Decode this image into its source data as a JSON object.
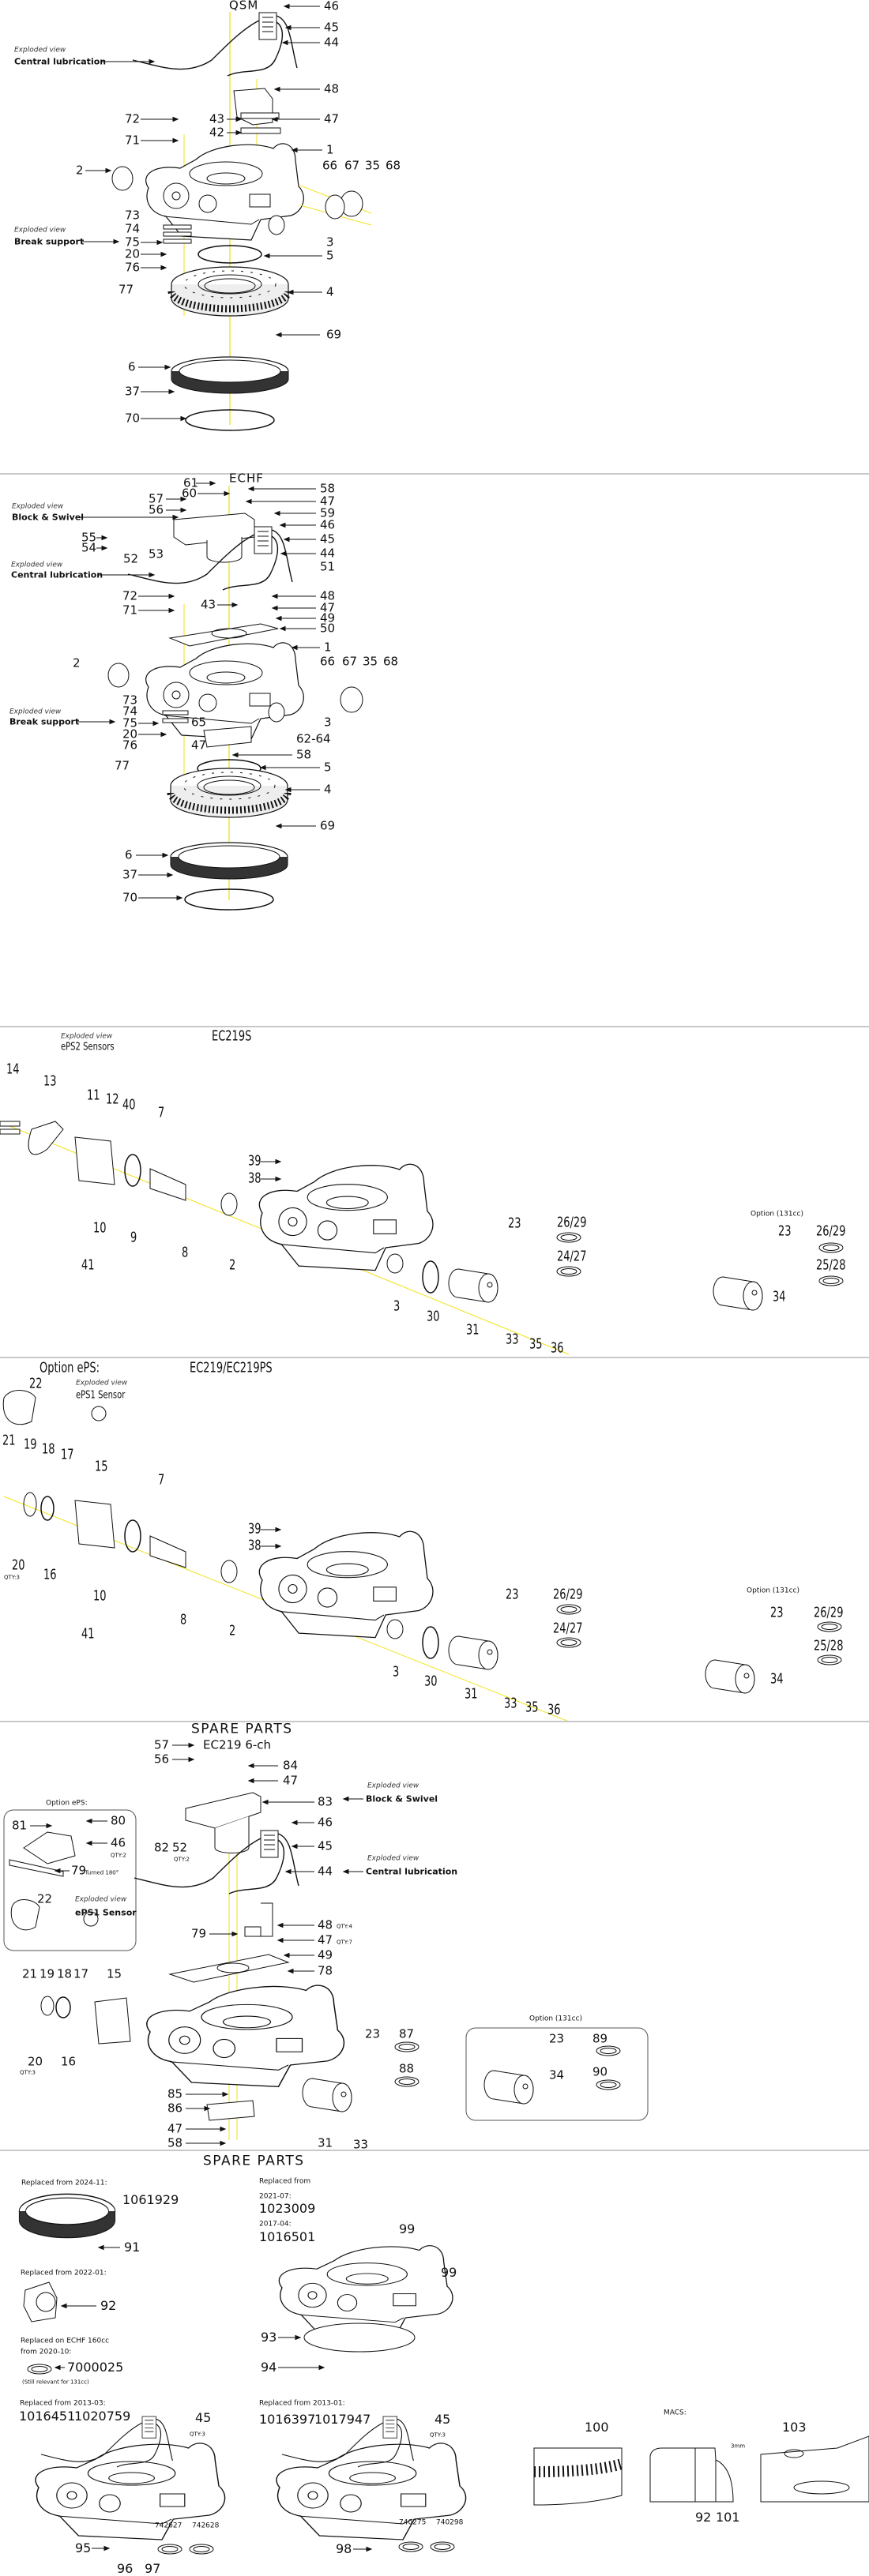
{
  "colors": {
    "axis_line": "#f2e21a",
    "ink": "#111111",
    "divider": "#c8c8c8"
  },
  "sections": [
    {
      "id": "qsm",
      "labels": [
        "QSM",
        "46",
        "45",
        "44",
        "Exploded view",
        "Central lubrication",
        "48",
        "72",
        "43",
        "47",
        "42",
        "71",
        "1",
        "2",
        "66",
        "67",
        "35",
        "68",
        "73",
        "74",
        "Exploded view",
        "Break support",
        "75",
        "3",
        "20",
        "5",
        "76",
        "77",
        "4",
        "69",
        "6",
        "37",
        "70"
      ]
    },
    {
      "id": "echf",
      "labels": [
        "ECHF",
        "61",
        "58",
        "60",
        "57",
        "47",
        "Exploded view",
        "56",
        "Block & Swivel",
        "59",
        "46",
        "55",
        "45",
        "54",
        "44",
        "53",
        "52",
        "51",
        "Exploded view",
        "Central lubrication",
        "72",
        "48",
        "43",
        "47",
        "71",
        "49",
        "50",
        "1",
        "2",
        "66",
        "67",
        "35",
        "68",
        "73",
        "74",
        "Exploded view",
        "Break support",
        "75",
        "65",
        "20",
        "3",
        "62-64",
        "76",
        "47",
        "58",
        "77",
        "5",
        "4",
        "69",
        "6",
        "37",
        "70"
      ]
    },
    {
      "id": "ec219s",
      "labels": [
        "EC219S",
        "Exploded view",
        "ePS2 Sensors",
        "14",
        "13",
        "11",
        "12",
        "40",
        "7",
        "39",
        "38",
        "10",
        "9",
        "41",
        "8",
        "2",
        "23",
        "26/29",
        "24/27",
        "Option (131cc)",
        "23",
        "26/29",
        "25/28",
        "34",
        "3",
        "30",
        "31",
        "33",
        "35",
        "36"
      ]
    },
    {
      "id": "ec219-ec219ps",
      "labels": [
        "Option ePS:",
        "EC219/EC219PS",
        "22",
        "Exploded view",
        "ePS1 Sensor",
        "21",
        "19",
        "18",
        "17",
        "15",
        "7",
        "39",
        "38",
        "20",
        "QTY:3",
        "16",
        "10",
        "8",
        "2",
        "41",
        "23",
        "26/29",
        "24/27",
        "Option (131cc)",
        "23",
        "26/29",
        "25/28",
        "34",
        "3",
        "30",
        "31",
        "33",
        "35",
        "36"
      ]
    },
    {
      "id": "spare-parts-ec219-6ch",
      "labels": [
        "SPARE PARTS",
        "EC219 6-ch",
        "57",
        "84",
        "56",
        "47",
        "Exploded view",
        "Block & Swivel",
        "83",
        "Option ePS:",
        "80",
        "81",
        "46",
        "46",
        "QTY:2",
        "82",
        "52",
        "QTY:2",
        "45",
        "Exploded view",
        "Central lubrication",
        "44",
        "79",
        ": Turned 180°",
        "22",
        "Exploded view",
        "ePS1 Sensor",
        "48",
        "QTY:4",
        "79",
        "47",
        "QTY:7",
        "49",
        "78",
        "21",
        "19",
        "18",
        "17",
        "15",
        "23",
        "87",
        "20",
        "QTY:3",
        "16",
        "88",
        "85",
        "86",
        "47",
        "31",
        "58",
        "33",
        "Option (131cc)",
        "23",
        "89",
        "90",
        "34"
      ]
    },
    {
      "id": "spare-parts",
      "labels": [
        "SPARE PARTS",
        "Replaced from 2024-11:",
        "1061929",
        "91",
        "Replaced from 2022-01:",
        "92",
        "Replaced on ECHF 160cc",
        "from 2020-10:",
        "7000025",
        "(Still relevant for 131cc)",
        "Replaced from 2013-03:",
        "1016451",
        "1020759",
        "45",
        "QTY:3",
        "742627",
        "742628",
        "95",
        "96",
        "97",
        "Replaced from",
        "2021-07:",
        "1023009",
        "2017-04:",
        "1016501",
        "99",
        "99",
        "93",
        "94",
        "Replaced from 2013-01:",
        "1016397",
        "1017947",
        "45",
        "QTY:3",
        "740275",
        "740298",
        "98",
        "MACS:",
        "100",
        "3mm",
        "92",
        "101",
        "103"
      ]
    }
  ]
}
